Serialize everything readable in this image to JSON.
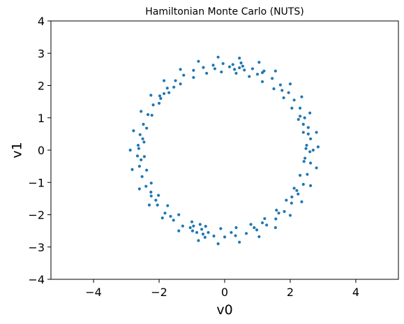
{
  "chart_data": {
    "type": "scatter",
    "title": "Hamiltonian Monte Carlo (NUTS)",
    "xlabel": "v0",
    "ylabel": "v1",
    "xlim": [
      -5.3,
      5.3
    ],
    "ylim": [
      -4,
      4
    ],
    "xticks": [
      -4,
      -2,
      0,
      2,
      4
    ],
    "xtick_labels": [
      "−4",
      "−2",
      "0",
      "2",
      "4"
    ],
    "yticks": [
      -4,
      -3,
      -2,
      -1,
      0,
      1,
      2,
      3,
      4
    ],
    "ytick_labels": [
      "−4",
      "−3",
      "−2",
      "−1",
      "0",
      "1",
      "2",
      "3",
      "4"
    ],
    "grid": false,
    "marker_color": "#1f77b4",
    "series": [
      {
        "points": [
          [
            2.7,
            0.0
          ],
          [
            2.62,
            0.35
          ],
          [
            2.55,
            0.7
          ],
          [
            2.44,
            1.0
          ],
          [
            2.3,
            1.3
          ],
          [
            2.12,
            1.55
          ],
          [
            1.95,
            1.78
          ],
          [
            1.7,
            2.02
          ],
          [
            1.45,
            2.22
          ],
          [
            1.15,
            2.4
          ],
          [
            0.85,
            2.52
          ],
          [
            0.55,
            2.6
          ],
          [
            0.25,
            2.65
          ],
          [
            -0.05,
            2.68
          ],
          [
            -0.35,
            2.63
          ],
          [
            -0.65,
            2.56
          ],
          [
            -0.95,
            2.47
          ],
          [
            -1.25,
            2.32
          ],
          [
            -1.5,
            2.15
          ],
          [
            -1.75,
            1.92
          ],
          [
            -1.98,
            1.68
          ],
          [
            -2.18,
            1.4
          ],
          [
            -2.34,
            1.1
          ],
          [
            -2.48,
            0.8
          ],
          [
            -2.58,
            0.48
          ],
          [
            -2.64,
            0.15
          ],
          [
            -2.66,
            -0.18
          ],
          [
            -2.6,
            -0.5
          ],
          [
            -2.52,
            -0.82
          ],
          [
            -2.4,
            -1.12
          ],
          [
            -2.24,
            -1.42
          ],
          [
            -2.05,
            -1.7
          ],
          [
            -1.82,
            -1.95
          ],
          [
            -1.56,
            -2.17
          ],
          [
            -1.28,
            -2.35
          ],
          [
            -0.98,
            -2.5
          ],
          [
            -0.66,
            -2.6
          ],
          [
            -0.33,
            -2.66
          ],
          [
            0.0,
            -2.69
          ],
          [
            0.33,
            -2.65
          ],
          [
            0.66,
            -2.58
          ],
          [
            0.98,
            -2.47
          ],
          [
            1.28,
            -2.32
          ],
          [
            1.56,
            -2.13
          ],
          [
            1.82,
            -1.9
          ],
          [
            2.04,
            -1.64
          ],
          [
            2.24,
            -1.36
          ],
          [
            2.4,
            -1.06
          ],
          [
            2.52,
            -0.75
          ],
          [
            2.62,
            -0.4
          ],
          [
            2.85,
            0.1
          ],
          [
            2.8,
            0.55
          ],
          [
            2.6,
            1.15
          ],
          [
            2.35,
            1.65
          ],
          [
            2.0,
            2.05
          ],
          [
            1.55,
            2.45
          ],
          [
            1.05,
            2.72
          ],
          [
            0.45,
            2.85
          ],
          [
            -0.2,
            2.88
          ],
          [
            -0.8,
            2.75
          ],
          [
            -1.35,
            2.5
          ],
          [
            -1.85,
            2.15
          ],
          [
            -2.25,
            1.7
          ],
          [
            -2.55,
            1.2
          ],
          [
            -2.78,
            0.6
          ],
          [
            -2.88,
            0.0
          ],
          [
            -2.82,
            -0.6
          ],
          [
            -2.6,
            -1.2
          ],
          [
            -2.3,
            -1.7
          ],
          [
            -1.9,
            -2.1
          ],
          [
            -1.4,
            -2.5
          ],
          [
            -0.8,
            -2.8
          ],
          [
            -0.2,
            -2.9
          ],
          [
            0.45,
            -2.85
          ],
          [
            1.05,
            -2.68
          ],
          [
            1.55,
            -2.4
          ],
          [
            2.0,
            -2.02
          ],
          [
            2.35,
            -1.6
          ],
          [
            2.62,
            -1.1
          ],
          [
            2.8,
            -0.55
          ],
          [
            2.5,
            0.15
          ],
          [
            2.4,
            0.55
          ],
          [
            2.25,
            0.95
          ],
          [
            2.05,
            1.3
          ],
          [
            1.8,
            1.62
          ],
          [
            1.5,
            1.9
          ],
          [
            1.15,
            2.12
          ],
          [
            0.75,
            2.28
          ],
          [
            0.35,
            2.38
          ],
          [
            -0.1,
            2.42
          ],
          [
            -0.55,
            2.38
          ],
          [
            -0.95,
            2.25
          ],
          [
            -1.35,
            2.05
          ],
          [
            -1.7,
            1.78
          ],
          [
            -2.0,
            1.45
          ],
          [
            -2.22,
            1.08
          ],
          [
            -2.38,
            0.68
          ],
          [
            -2.46,
            0.25
          ],
          [
            -2.45,
            -0.2
          ],
          [
            -2.38,
            -0.62
          ],
          [
            -2.24,
            -1.02
          ],
          [
            -2.02,
            -1.4
          ],
          [
            -1.74,
            -1.72
          ],
          [
            -1.4,
            -2.0
          ],
          [
            -1.0,
            -2.22
          ],
          [
            -0.58,
            -2.36
          ],
          [
            -0.12,
            -2.43
          ],
          [
            0.35,
            -2.4
          ],
          [
            0.8,
            -2.3
          ],
          [
            1.22,
            -2.12
          ],
          [
            1.58,
            -1.86
          ],
          [
            1.88,
            -1.55
          ],
          [
            2.12,
            -1.18
          ],
          [
            2.3,
            -0.78
          ],
          [
            2.42,
            -0.35
          ],
          [
            2.48,
            0.05
          ],
          [
            -0.7,
            -2.45
          ],
          [
            -0.85,
            -2.55
          ],
          [
            -0.6,
            -2.7
          ],
          [
            -0.95,
            -2.35
          ],
          [
            -0.75,
            -2.3
          ],
          [
            -0.5,
            -2.55
          ],
          [
            0.45,
            2.55
          ],
          [
            0.3,
            2.5
          ],
          [
            0.6,
            2.48
          ],
          [
            0.15,
            2.58
          ],
          [
            0.5,
            2.7
          ],
          [
            2.55,
            0.5
          ],
          [
            2.6,
            -0.05
          ],
          [
            2.45,
            -0.25
          ],
          [
            -2.55,
            -0.3
          ],
          [
            -2.62,
            0.05
          ],
          [
            -2.5,
            0.35
          ],
          [
            1.0,
            2.35
          ],
          [
            1.2,
            2.45
          ],
          [
            -1.05,
            -2.4
          ],
          [
            1.15,
            -2.25
          ],
          [
            0.9,
            -2.4
          ],
          [
            -1.95,
            1.6
          ],
          [
            -1.85,
            1.75
          ],
          [
            2.3,
            1.05
          ],
          [
            2.4,
            0.8
          ],
          [
            -2.1,
            -1.55
          ],
          [
            -2.25,
            -1.3
          ],
          [
            2.05,
            -1.45
          ],
          [
            2.2,
            -1.25
          ],
          [
            -1.55,
            1.95
          ],
          [
            1.75,
            1.85
          ],
          [
            -0.3,
            2.52
          ],
          [
            0.2,
            -2.55
          ],
          [
            -1.65,
            -2.05
          ],
          [
            1.65,
            -1.95
          ]
        ]
      }
    ]
  }
}
